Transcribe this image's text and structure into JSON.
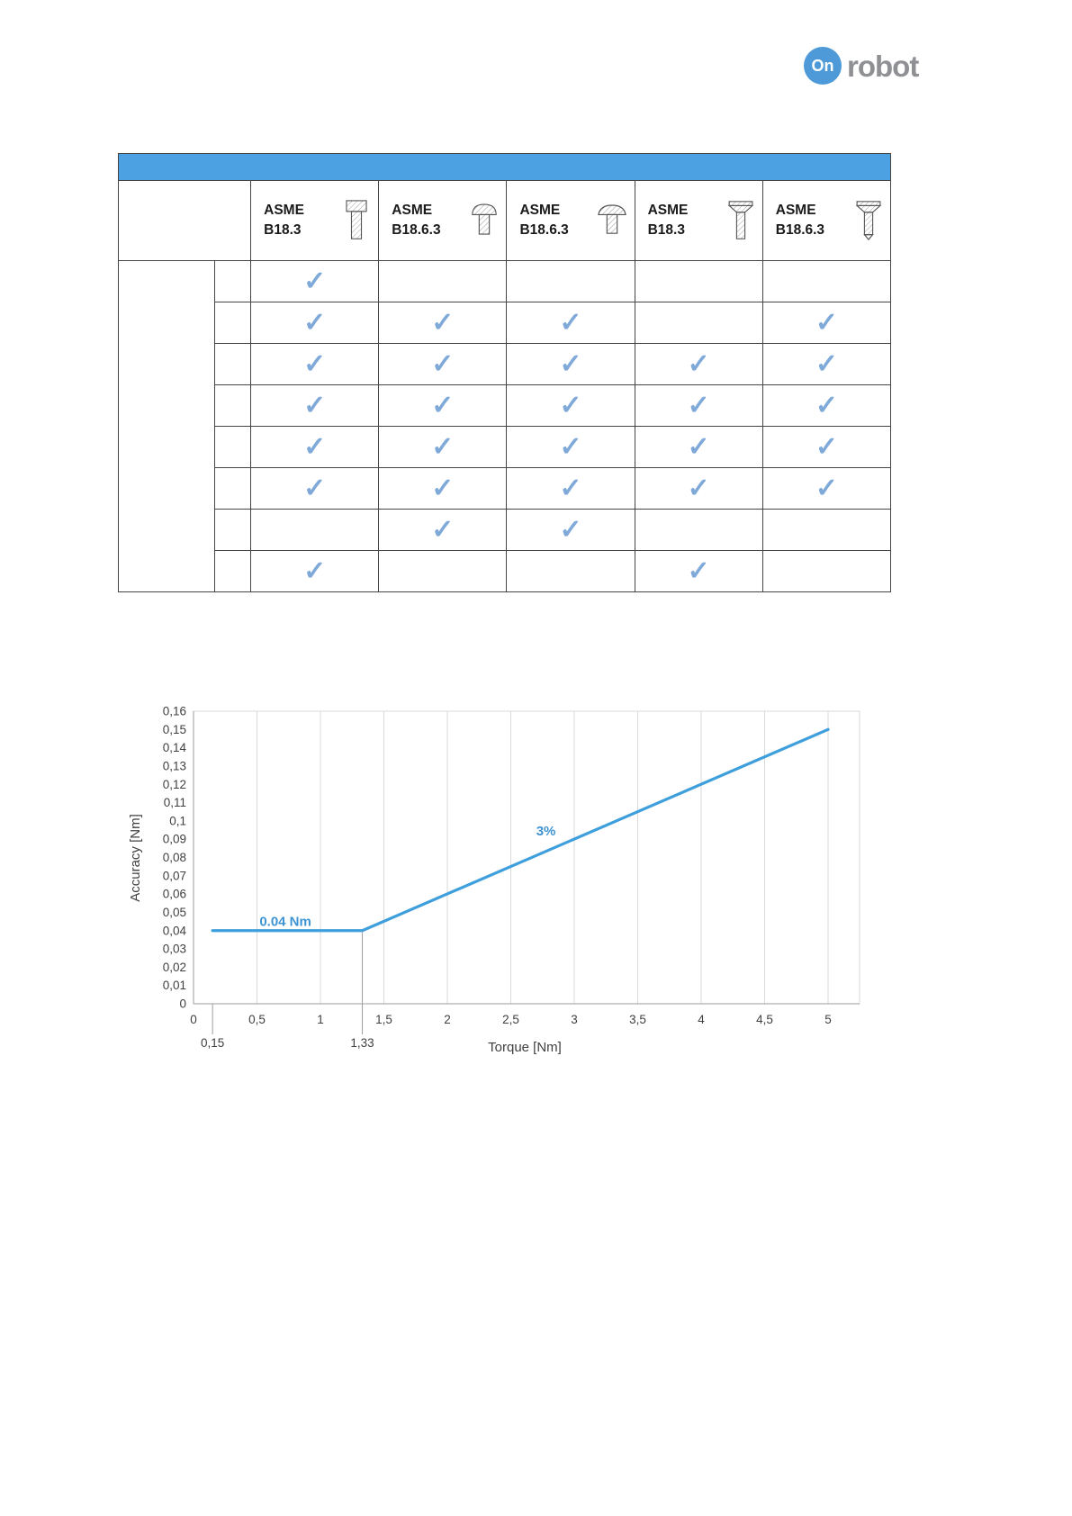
{
  "logo": {
    "circle_text": "On",
    "brand_text": "robot",
    "circle_color": "#4e9ad8",
    "text_color": "#8f9093"
  },
  "screw_table": {
    "title_bar_color": "#4ba1e2",
    "columns": [
      {
        "label": "ASME\nB18.3",
        "icon": "socket-head-cap-screw"
      },
      {
        "label": "ASME\nB18.6.3",
        "icon": "pan-head-screw"
      },
      {
        "label": "ASME\nB18.6.3",
        "icon": "truss-head-screw"
      },
      {
        "label": "ASME\nB18.3",
        "icon": "countersunk-flat-head-screw"
      },
      {
        "label": "ASME\nB18.6.3",
        "icon": "countersunk-machine-screw"
      }
    ],
    "check_glyph": "✓",
    "check_color": "#7ea9d8",
    "rows": [
      {
        "checks": [
          1,
          0,
          0,
          0,
          0
        ]
      },
      {
        "checks": [
          1,
          1,
          1,
          0,
          1
        ]
      },
      {
        "checks": [
          1,
          1,
          1,
          1,
          1
        ]
      },
      {
        "checks": [
          1,
          1,
          1,
          1,
          1
        ]
      },
      {
        "checks": [
          1,
          1,
          1,
          1,
          1
        ]
      },
      {
        "checks": [
          1,
          1,
          1,
          1,
          1
        ]
      },
      {
        "checks": [
          0,
          1,
          1,
          0,
          0
        ]
      },
      {
        "checks": [
          1,
          0,
          0,
          1,
          0
        ]
      }
    ]
  },
  "chart_data": {
    "type": "line",
    "title": "",
    "xlabel": "Torque [Nm]",
    "ylabel": "Accuracy [Nm]",
    "xlim": [
      0,
      5
    ],
    "ylim": [
      0,
      0.16
    ],
    "grid": "vertical",
    "legend": "none",
    "x_ticks": [
      {
        "value": 0,
        "label": "0"
      },
      {
        "value": 0.5,
        "label": "0,5"
      },
      {
        "value": 1,
        "label": "1"
      },
      {
        "value": 1.5,
        "label": "1,5"
      },
      {
        "value": 2,
        "label": "2"
      },
      {
        "value": 2.5,
        "label": "2,5"
      },
      {
        "value": 3,
        "label": "3"
      },
      {
        "value": 3.5,
        "label": "3,5"
      },
      {
        "value": 4,
        "label": "4"
      },
      {
        "value": 4.5,
        "label": "4,5"
      },
      {
        "value": 5,
        "label": "5"
      }
    ],
    "y_ticks": [
      {
        "value": 0,
        "label": "0"
      },
      {
        "value": 0.01,
        "label": "0,01"
      },
      {
        "value": 0.02,
        "label": "0,02"
      },
      {
        "value": 0.03,
        "label": "0,03"
      },
      {
        "value": 0.04,
        "label": "0,04"
      },
      {
        "value": 0.05,
        "label": "0,05"
      },
      {
        "value": 0.06,
        "label": "0,06"
      },
      {
        "value": 0.07,
        "label": "0,07"
      },
      {
        "value": 0.08,
        "label": "0,08"
      },
      {
        "value": 0.09,
        "label": "0,09"
      },
      {
        "value": 0.1,
        "label": "0,1"
      },
      {
        "value": 0.11,
        "label": "0,11"
      },
      {
        "value": 0.12,
        "label": "0,12"
      },
      {
        "value": 0.13,
        "label": "0,13"
      },
      {
        "value": 0.14,
        "label": "0,14"
      },
      {
        "value": 0.15,
        "label": "0,15"
      },
      {
        "value": 0.16,
        "label": "0,16"
      }
    ],
    "series": [
      {
        "name": "accuracy-line",
        "color": "#3e9fdc",
        "points": [
          [
            0.15,
            0.04
          ],
          [
            1.33,
            0.04
          ],
          [
            5,
            0.15
          ]
        ]
      }
    ],
    "annotations": [
      {
        "text": "0.04 Nm",
        "x": 0.52,
        "y": 0.0425,
        "color": "#3e93d2"
      },
      {
        "text": "3%",
        "x": 2.7,
        "y": 0.092,
        "color": "#3e93d2"
      }
    ],
    "threshold_marks": [
      {
        "x": 0.15,
        "label": "0,15",
        "line_from_value": 0
      },
      {
        "x": 1.33,
        "label": "1,33",
        "line_from_value": 0.04
      }
    ]
  }
}
